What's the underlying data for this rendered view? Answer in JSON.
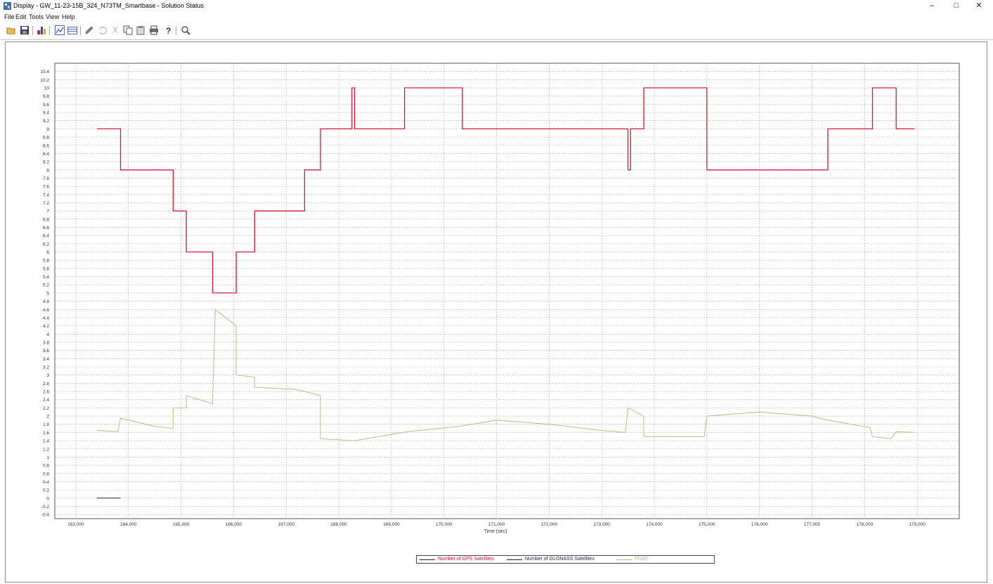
{
  "window": {
    "title": "Display - GW_11-23-15B_324_N73TM_Smartbase - Solution Status",
    "minimize_glyph": "–",
    "maximize_glyph": "□",
    "close_glyph": "✕"
  },
  "menu": [
    "File",
    "Edit",
    "Tools",
    "View",
    "Help"
  ],
  "toolbar": {
    "icons": [
      "open-icon",
      "save-icon",
      "plot-options-icon",
      "chart-icon",
      "table-icon",
      "pencil-icon",
      "undo-icon",
      "cut-icon",
      "copy-icon",
      "paste-icon",
      "print-icon",
      "help-icon",
      "zoom-icon"
    ]
  },
  "colors": {
    "gps": "#d2173c",
    "glonass": "#1e1e3c",
    "pdop": "#b4bb8c",
    "grid": "#9a9a9a"
  },
  "chart_data": {
    "type": "line",
    "title": "",
    "xlabel": "Time (sec)",
    "ylabel": "",
    "xlim": [
      162600,
      179800
    ],
    "ylim": [
      -0.5,
      10.6
    ],
    "grid": true,
    "legend_position": "bottom-center",
    "x_ticks": [
      163000,
      164000,
      165000,
      166000,
      167000,
      168000,
      169000,
      170000,
      171000,
      172000,
      173000,
      174000,
      175000,
      176000,
      177000,
      178000,
      179000
    ],
    "x_tick_labels": [
      "163,000",
      "164,000",
      "165,000",
      "166,000",
      "167,000",
      "168,000",
      "169,000",
      "170,000",
      "171,000",
      "172,000",
      "173,000",
      "174,000",
      "175,000",
      "176,000",
      "177,000",
      "178,000",
      "179,000"
    ],
    "y_ticks": [
      -0.4,
      -0.2,
      0,
      0.2,
      0.4,
      0.6,
      0.8,
      1,
      1.2,
      1.4,
      1.6,
      1.8,
      2,
      2.2,
      2.4,
      2.6,
      2.8,
      3,
      3.2,
      3.4,
      3.6,
      3.8,
      4,
      4.2,
      4.4,
      4.6,
      4.8,
      5,
      5.2,
      5.4,
      5.6,
      5.8,
      6,
      6.2,
      6.4,
      6.6,
      6.8,
      7,
      7.2,
      7.4,
      7.6,
      7.8,
      8,
      8.2,
      8.4,
      8.6,
      8.8,
      9,
      9.2,
      9.4,
      9.6,
      9.8,
      10,
      10.2,
      10.4
    ],
    "y_tick_labels": [
      "-0.4",
      "-0.2",
      "0",
      "0.2",
      "0.4",
      "0.6",
      "0.8",
      "1",
      "1.2",
      "1.4",
      "1.6",
      "1.8",
      "2",
      "2.2",
      "2.4",
      "2.6",
      "2.8",
      "3",
      "3.2",
      "3.4",
      "3.6",
      "3.8",
      "4",
      "4.2",
      "4.4",
      "4.6",
      "4.8",
      "5",
      "5.2",
      "5.4",
      "5.6",
      "5.8",
      "6",
      "6.2",
      "6.4",
      "6.6",
      "6.8",
      "7",
      "7.2",
      "7.4",
      "7.6",
      "7.8",
      "8",
      "8.2",
      "8.4",
      "8.6",
      "8.8",
      "9",
      "9.2",
      "9.4",
      "9.6",
      "9.8",
      "10",
      "10.2",
      "10.4"
    ],
    "series": [
      {
        "name": "Number of GPS Satellites",
        "color": "#d2173c",
        "points": [
          [
            163400,
            9
          ],
          [
            163850,
            9
          ],
          [
            163850,
            8
          ],
          [
            164850,
            8
          ],
          [
            164850,
            7
          ],
          [
            165100,
            7
          ],
          [
            165100,
            6
          ],
          [
            165600,
            6
          ],
          [
            165600,
            5
          ],
          [
            166050,
            5
          ],
          [
            166050,
            6
          ],
          [
            166400,
            6
          ],
          [
            166400,
            7
          ],
          [
            167350,
            7
          ],
          [
            167350,
            8
          ],
          [
            167650,
            8
          ],
          [
            167650,
            9
          ],
          [
            168250,
            9
          ],
          [
            168250,
            10
          ],
          [
            168300,
            10
          ],
          [
            168300,
            9
          ],
          [
            169250,
            9
          ],
          [
            169250,
            10
          ],
          [
            170350,
            10
          ],
          [
            170350,
            9
          ],
          [
            173500,
            9
          ],
          [
            173500,
            8
          ],
          [
            173550,
            8
          ],
          [
            173550,
            9
          ],
          [
            173800,
            9
          ],
          [
            173800,
            10
          ],
          [
            175000,
            10
          ],
          [
            175000,
            8
          ],
          [
            177300,
            8
          ],
          [
            177300,
            9
          ],
          [
            178150,
            9
          ],
          [
            178150,
            10
          ],
          [
            178600,
            10
          ],
          [
            178600,
            9
          ],
          [
            178950,
            9
          ]
        ]
      },
      {
        "name": "Number of GLONASS Satellites",
        "color": "#1e1e3c",
        "points": [
          [
            163400,
            0
          ],
          [
            163850,
            0
          ]
        ]
      },
      {
        "name": "PDOP",
        "color": "#b4bb8c",
        "points": [
          [
            163400,
            1.65
          ],
          [
            163800,
            1.62
          ],
          [
            163850,
            1.95
          ],
          [
            164500,
            1.75
          ],
          [
            164850,
            1.7
          ],
          [
            164850,
            2.2
          ],
          [
            165100,
            2.2
          ],
          [
            165100,
            2.5
          ],
          [
            165600,
            2.3
          ],
          [
            165650,
            4.6
          ],
          [
            166050,
            4.2
          ],
          [
            166050,
            3.0
          ],
          [
            166400,
            2.95
          ],
          [
            166400,
            2.7
          ],
          [
            167200,
            2.65
          ],
          [
            167650,
            2.5
          ],
          [
            167650,
            1.45
          ],
          [
            168300,
            1.4
          ],
          [
            169300,
            1.62
          ],
          [
            170300,
            1.75
          ],
          [
            171000,
            1.9
          ],
          [
            172000,
            1.8
          ],
          [
            173000,
            1.65
          ],
          [
            173450,
            1.6
          ],
          [
            173500,
            2.2
          ],
          [
            173800,
            2.0
          ],
          [
            173800,
            1.5
          ],
          [
            174950,
            1.5
          ],
          [
            175000,
            2.0
          ],
          [
            176000,
            2.1
          ],
          [
            177000,
            2.0
          ],
          [
            177300,
            1.9
          ],
          [
            178100,
            1.72
          ],
          [
            178150,
            1.5
          ],
          [
            178500,
            1.45
          ],
          [
            178600,
            1.62
          ],
          [
            178950,
            1.6
          ]
        ]
      }
    ]
  },
  "legend": {
    "items": [
      {
        "label": "Number of GPS Satellites",
        "color": "#d2173c"
      },
      {
        "label": "Number of GLONASS Satellites",
        "color": "#1e1e3c"
      },
      {
        "label": "PDOP",
        "color": "#b4bb8c"
      }
    ]
  }
}
